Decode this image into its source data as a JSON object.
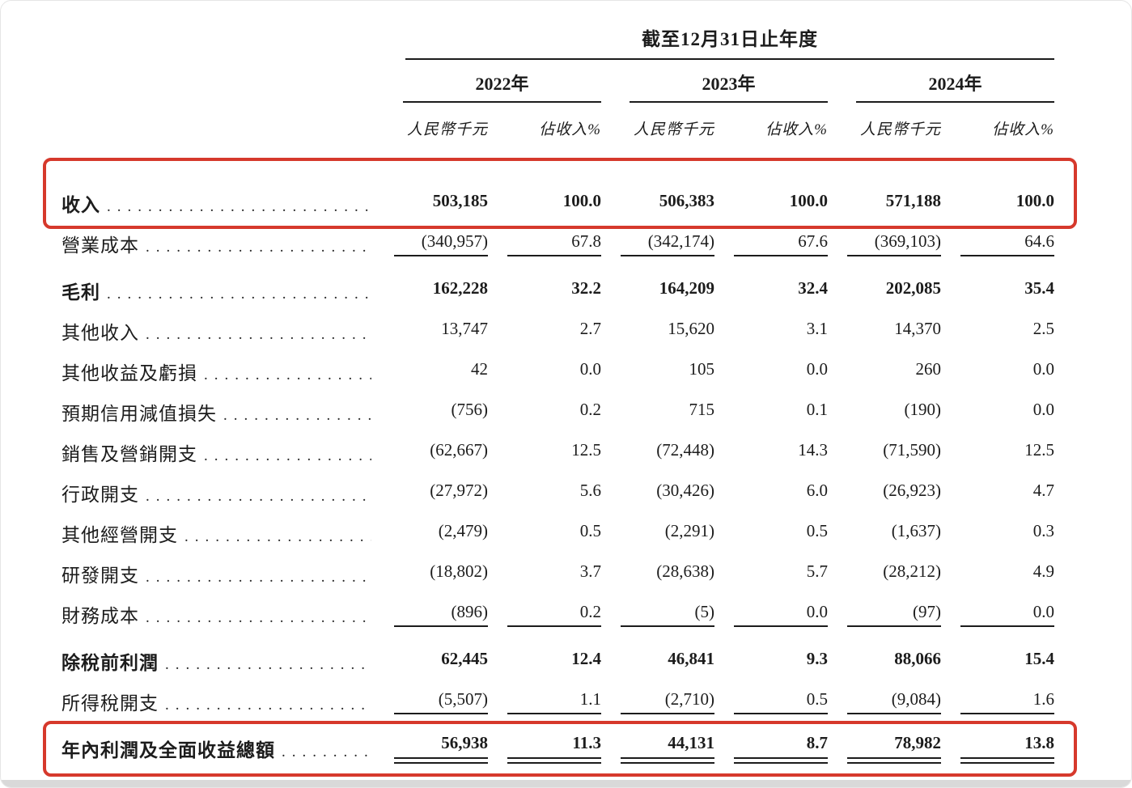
{
  "page": {
    "accent_red": "#d6392c",
    "ink": "#1c1c1c"
  },
  "table": {
    "period_header": "截至12月31日止年度",
    "unit_label": "人民幣千元",
    "pct_label": "佔收入%",
    "years": [
      "2022年",
      "2023年",
      "2024年"
    ],
    "rows": [
      {
        "label": "收入",
        "values": [
          "503,185",
          "100.0",
          "506,383",
          "100.0",
          "571,188",
          "100.0"
        ],
        "bold": true,
        "highlight": true
      },
      {
        "label": "營業成本",
        "values": [
          "(340,957)",
          "67.8",
          "(342,174)",
          "67.6",
          "(369,103)",
          "64.6"
        ],
        "underline": "single"
      },
      {
        "label": "毛利",
        "values": [
          "162,228",
          "32.2",
          "164,209",
          "32.4",
          "202,085",
          "35.4"
        ],
        "bold": true
      },
      {
        "label": "其他收入",
        "values": [
          "13,747",
          "2.7",
          "15,620",
          "3.1",
          "14,370",
          "2.5"
        ]
      },
      {
        "label": "其他收益及虧損",
        "values": [
          "42",
          "0.0",
          "105",
          "0.0",
          "260",
          "0.0"
        ]
      },
      {
        "label": "預期信用減值損失",
        "values": [
          "(756)",
          "0.2",
          "715",
          "0.1",
          "(190)",
          "0.0"
        ]
      },
      {
        "label": "銷售及營銷開支",
        "values": [
          "(62,667)",
          "12.5",
          "(72,448)",
          "14.3",
          "(71,590)",
          "12.5"
        ]
      },
      {
        "label": "行政開支",
        "values": [
          "(27,972)",
          "5.6",
          "(30,426)",
          "6.0",
          "(26,923)",
          "4.7"
        ]
      },
      {
        "label": "其他經營開支",
        "values": [
          "(2,479)",
          "0.5",
          "(2,291)",
          "0.5",
          "(1,637)",
          "0.3"
        ]
      },
      {
        "label": "研發開支",
        "values": [
          "(18,802)",
          "3.7",
          "(28,638)",
          "5.7",
          "(28,212)",
          "4.9"
        ]
      },
      {
        "label": "財務成本",
        "values": [
          "(896)",
          "0.2",
          "(5)",
          "0.0",
          "(97)",
          "0.0"
        ],
        "underline": "single"
      },
      {
        "label": "除稅前利潤",
        "values": [
          "62,445",
          "12.4",
          "46,841",
          "9.3",
          "88,066",
          "15.4"
        ],
        "bold": true
      },
      {
        "label": "所得稅開支",
        "values": [
          "(5,507)",
          "1.1",
          "(2,710)",
          "0.5",
          "(9,084)",
          "1.6"
        ],
        "underline": "single"
      },
      {
        "label": "年內利潤及全面收益總額",
        "values": [
          "56,938",
          "11.3",
          "44,131",
          "8.7",
          "78,982",
          "13.8"
        ],
        "bold": true,
        "highlight": true,
        "underline": "double"
      }
    ]
  }
}
